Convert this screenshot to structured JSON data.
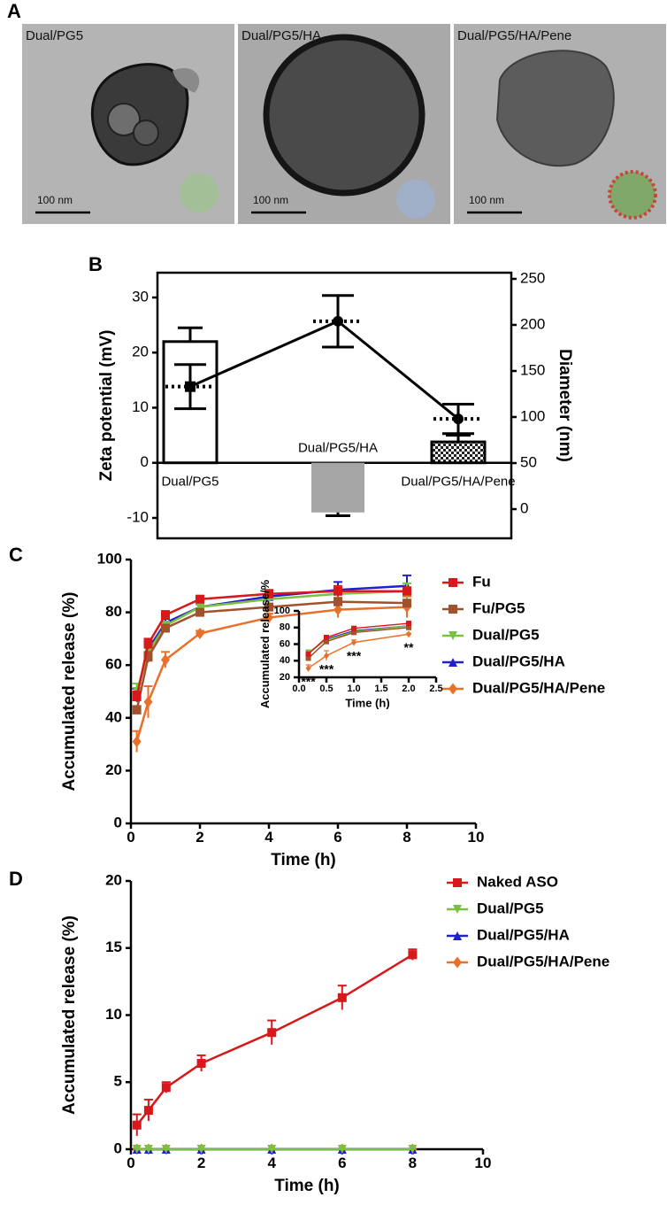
{
  "figure_a": {
    "panel_label": "A",
    "images": [
      {
        "label": "Dual/PG5",
        "scale_bar": "100 nm"
      },
      {
        "label": "Dual/PG5/HA",
        "scale_bar": "100 nm"
      },
      {
        "label": "Dual/PG5/HA/Pene",
        "scale_bar": "100 nm"
      }
    ]
  },
  "chart_data": [
    {
      "type": "bar_line",
      "panel_label": "B",
      "ylabel": "Zeta potential (mV)",
      "y2label": "Diameter (nm)",
      "categories": [
        "Dual/PG5",
        "Dual/PG5/HA",
        "Dual/PG5/HA/Pene"
      ],
      "bars": {
        "values": [
          22,
          -9,
          3.8
        ],
        "errors": [
          2.5,
          0.6,
          1.2
        ],
        "patterns": [
          "none",
          "solid",
          "checker"
        ],
        "color": "#a6a6a6"
      },
      "line": {
        "values": [
          133,
          204,
          98
        ],
        "errors": [
          24,
          28,
          16
        ],
        "axis": "y2",
        "markers": [
          "square",
          "circle",
          "circle"
        ],
        "color": "#000000"
      },
      "ylim": [
        -13.7,
        34.5
      ],
      "yticks": [
        -10,
        0,
        10,
        20,
        30
      ],
      "y2lim": [
        -31.7,
        256.7
      ],
      "y2ticks": [
        0,
        50,
        100,
        150,
        200,
        250
      ]
    },
    {
      "type": "line",
      "panel_label": "C",
      "xlabel": "Time (h)",
      "ylabel": "Accumulated release (%)",
      "x": [
        0.17,
        0.5,
        1,
        2,
        4,
        6,
        8
      ],
      "xlim": [
        0,
        10
      ],
      "xticks": [
        0,
        2,
        4,
        6,
        8,
        10
      ],
      "ylim": [
        0,
        100
      ],
      "yticks": [
        0,
        20,
        40,
        60,
        80,
        100
      ],
      "legend": "upper right",
      "series": [
        {
          "name": "Fu",
          "color": "#d7191c",
          "marker": "square",
          "values": [
            48,
            68,
            79,
            85,
            87,
            88,
            88
          ],
          "errors": [
            2,
            2,
            1.5,
            1,
            1.5,
            2,
            1.5
          ]
        },
        {
          "name": "Fu/PG5",
          "color": "#a0522d",
          "marker": "square",
          "values": [
            43,
            63,
            74,
            80,
            82,
            84,
            83.5
          ],
          "errors": [
            1.5,
            2,
            1,
            1,
            1,
            1.5,
            1
          ]
        },
        {
          "name": "Dual/PG5",
          "color": "#7ac143",
          "marker": "triangle-down",
          "values": [
            50,
            65,
            75,
            82,
            85,
            87,
            88
          ],
          "errors": [
            3,
            2,
            1.5,
            1,
            1.5,
            2,
            3
          ]
        },
        {
          "name": "Dual/PG5/HA",
          "color": "#2020d0",
          "marker": "triangle-up",
          "values": [
            49,
            66,
            76,
            82,
            86,
            88.5,
            90
          ],
          "errors": [
            2,
            2,
            1.5,
            1,
            1.5,
            3,
            4
          ]
        },
        {
          "name": "Dual/PG5/HA/Pene",
          "color": "#e8702a",
          "marker": "diamond",
          "values": [
            31,
            46,
            62,
            72,
            78,
            81,
            82
          ],
          "errors": [
            4,
            6,
            3,
            1,
            1.5,
            3,
            4
          ]
        }
      ]
    },
    {
      "type": "line",
      "xlabel": "Time (h)",
      "ylabel": "Accumulated release/%",
      "x": [
        0.17,
        0.5,
        1,
        2
      ],
      "xlim": [
        0,
        2.5
      ],
      "xticks": [
        {
          "value": 0,
          "label": "0.0"
        },
        {
          "value": 0.5,
          "label": "0.5"
        },
        {
          "value": 1,
          "label": "1.0"
        },
        {
          "value": 1.5,
          "label": "1.5"
        },
        {
          "value": 2,
          "label": "2.0"
        },
        {
          "value": 2.5,
          "label": "2.5"
        }
      ],
      "ylim": [
        20,
        100
      ],
      "yticks": [
        20,
        40,
        60,
        80,
        100
      ],
      "series": [
        {
          "color": "#d7191c",
          "marker": "square",
          "values": [
            48,
            68,
            79,
            85
          ],
          "errors": [
            2,
            2,
            1.5,
            1
          ]
        },
        {
          "color": "#a0522d",
          "marker": "square",
          "values": [
            43,
            63,
            74,
            80
          ],
          "errors": [
            1.5,
            2,
            1,
            1
          ]
        },
        {
          "color": "#7ac143",
          "marker": "triangle-down",
          "values": [
            50,
            65,
            75,
            82
          ],
          "errors": [
            3,
            2,
            1.5,
            1
          ]
        },
        {
          "color": "#2020d0",
          "marker": "triangle-up",
          "values": [
            49,
            66,
            76,
            82
          ],
          "errors": [
            2,
            2,
            1.5,
            1
          ]
        },
        {
          "color": "#e8702a",
          "marker": "diamond",
          "values": [
            31,
            46,
            62,
            72
          ],
          "errors": [
            4,
            6,
            3,
            1
          ]
        }
      ],
      "annotations": [
        {
          "x": 0.17,
          "text": "***"
        },
        {
          "x": 0.5,
          "text": "***"
        },
        {
          "x": 1,
          "text": "***"
        },
        {
          "x": 2,
          "text": "**"
        }
      ]
    },
    {
      "type": "line",
      "panel_label": "D",
      "xlabel": "Time (h)",
      "ylabel": "Accumulated release (%)",
      "x": [
        0.17,
        0.5,
        1,
        2,
        4,
        6,
        8
      ],
      "xlim": [
        0,
        10
      ],
      "xticks": [
        0,
        2,
        4,
        6,
        8,
        10
      ],
      "ylim": [
        0,
        20
      ],
      "yticks": [
        0,
        5,
        10,
        15,
        20
      ],
      "legend": "upper right",
      "series": [
        {
          "name": "Naked ASO",
          "color": "#d7191c",
          "marker": "square",
          "values": [
            1.8,
            2.9,
            4.6,
            6.4,
            8.7,
            11.3,
            14.5
          ],
          "errors": [
            0.8,
            0.8,
            0.4,
            0.6,
            0.9,
            0.9,
            0.4
          ]
        },
        {
          "name": "Dual/PG5",
          "color": "#7ac143",
          "marker": "triangle-down",
          "values": [
            0,
            0,
            0,
            0,
            0,
            0,
            0
          ],
          "errors": [
            0,
            0,
            0,
            0,
            0,
            0,
            0
          ]
        },
        {
          "name": "Dual/PG5/HA",
          "color": "#2020d0",
          "marker": "triangle-up",
          "values": [
            0,
            0,
            0,
            0,
            0,
            0,
            0
          ],
          "errors": [
            0,
            0,
            0,
            0,
            0,
            0,
            0
          ]
        },
        {
          "name": "Dual/PG5/HA/Pene",
          "color": "#e8702a",
          "marker": "diamond",
          "values": [
            0,
            0,
            0,
            0,
            0,
            0,
            0
          ],
          "errors": [
            0,
            0,
            0,
            0,
            0,
            0,
            0
          ]
        }
      ]
    }
  ]
}
